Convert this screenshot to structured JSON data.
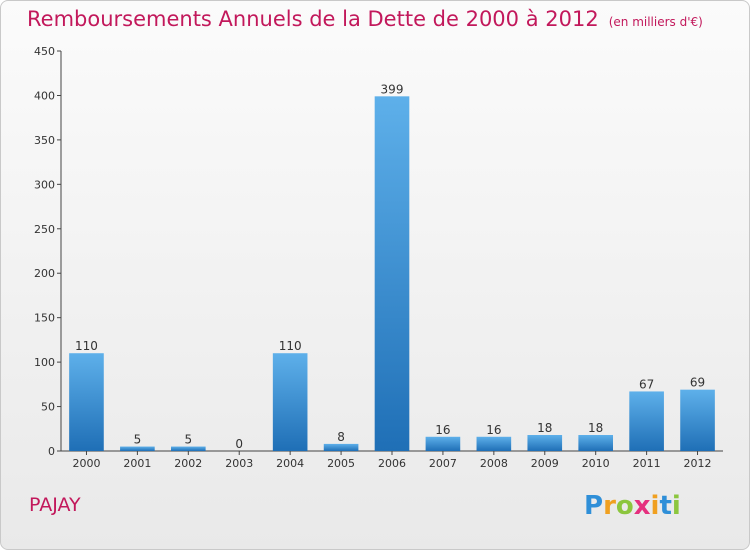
{
  "chart_data": {
    "type": "bar",
    "title": "Remboursements Annuels de la Dette de 2000 à 2012",
    "subtitle": "(en milliers d'€)",
    "categories": [
      "2000",
      "2001",
      "2002",
      "2003",
      "2004",
      "2005",
      "2006",
      "2007",
      "2008",
      "2009",
      "2010",
      "2011",
      "2012"
    ],
    "values": [
      110,
      5,
      5,
      0,
      110,
      8,
      399,
      16,
      16,
      18,
      18,
      67,
      69
    ],
    "ylim": [
      0,
      450
    ],
    "yticks": [
      0,
      50,
      100,
      150,
      200,
      250,
      300,
      350,
      400,
      450
    ],
    "grid": false,
    "bar_color": "#3a8fd6"
  },
  "commune": "PAJAY",
  "logo": {
    "letters": [
      "P",
      "r",
      "o",
      "x",
      "i",
      "t",
      "i"
    ],
    "colors": [
      "#2f8fd8",
      "#f0a020",
      "#8cc63e",
      "#e5307e",
      "#f0a020",
      "#2f8fd8",
      "#8cc63e"
    ]
  }
}
